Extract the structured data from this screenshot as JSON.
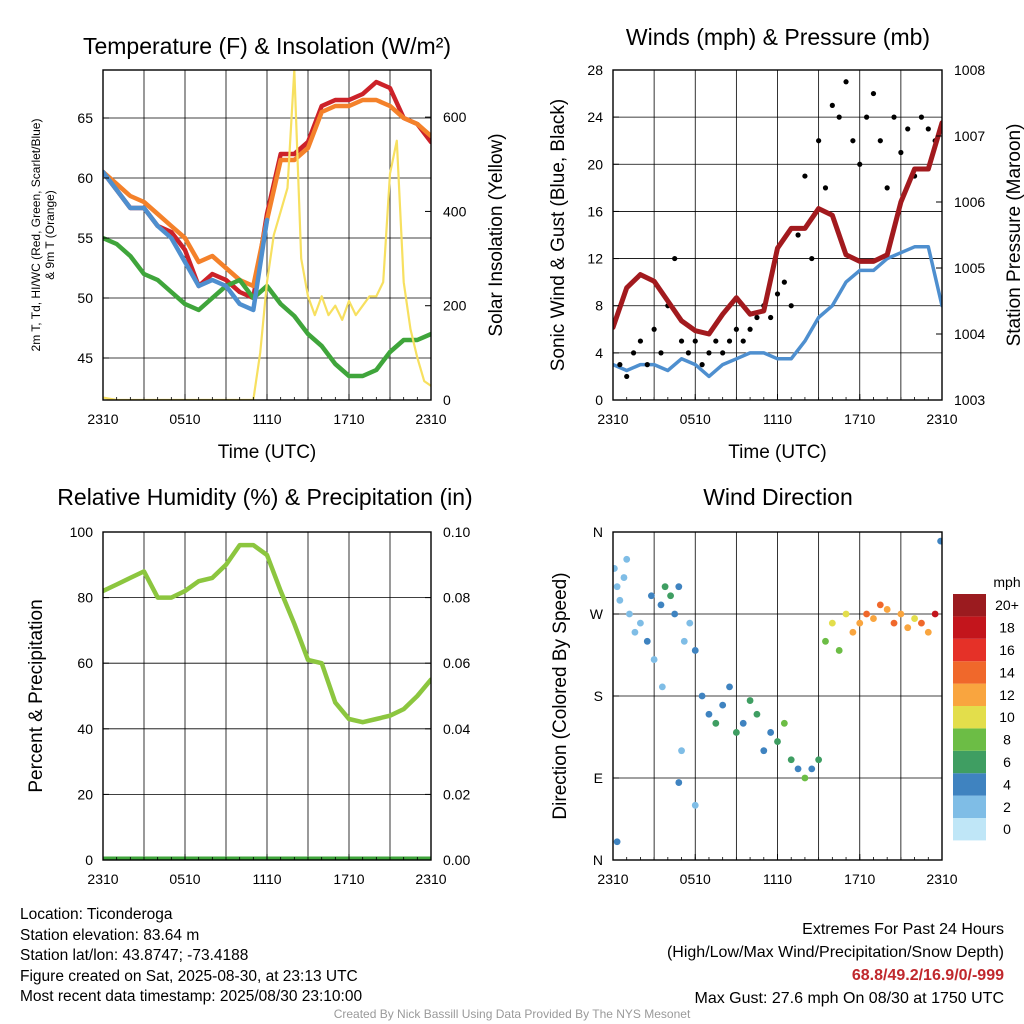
{
  "chart_data": [
    {
      "type": "line",
      "title": "Temperature (F) & Insolation (W/m²)",
      "xlabel": "Time (UTC)",
      "ylabel": "2m T, Td, HI/WC (Red, Green, Scarlet/Blue) & 9m T (Orange)",
      "y2label": "Solar Insolation (Yellow)",
      "x_ticks": [
        "2310",
        "0510",
        "1110",
        "1710",
        "2310"
      ],
      "y_ticks": [
        "45",
        "50",
        "55",
        "60",
        "65"
      ],
      "y2_ticks": [
        "0",
        "200",
        "400",
        "600"
      ],
      "ylim": [
        41.5,
        69
      ],
      "y2lim": [
        0,
        700
      ],
      "x_hours": [
        0,
        24
      ],
      "grid": true,
      "series": [
        {
          "name": "2m T",
          "axis": "left",
          "color": "#cc2229",
          "x": [
            0,
            1,
            2,
            3,
            4,
            5,
            6,
            7,
            8,
            9,
            10,
            11,
            12,
            13,
            14,
            15,
            16,
            17,
            18,
            19,
            20,
            21,
            22,
            23,
            24
          ],
          "values": [
            60.5,
            59,
            57.5,
            57.5,
            56,
            55.5,
            54,
            51,
            52,
            51.5,
            50.5,
            50,
            57,
            62,
            62,
            63,
            66,
            66.5,
            66.5,
            67,
            68,
            67.5,
            65,
            64.5,
            63
          ]
        },
        {
          "name": "9m T",
          "axis": "left",
          "color": "#f4812a",
          "x": [
            0,
            1,
            2,
            3,
            4,
            5,
            6,
            7,
            8,
            9,
            10,
            11,
            12,
            13,
            14,
            15,
            16,
            17,
            18,
            19,
            20,
            21,
            22,
            23,
            24
          ],
          "values": [
            60.5,
            59.5,
            58.5,
            58,
            57,
            56,
            55,
            53,
            53.5,
            52.5,
            51.5,
            51,
            56.5,
            61.5,
            61.5,
            62.5,
            65.5,
            66,
            66,
            66.5,
            66.5,
            66,
            65,
            64.5,
            63.5
          ]
        },
        {
          "name": "Td",
          "axis": "left",
          "color": "#3fa53b",
          "x": [
            0,
            1,
            2,
            3,
            4,
            5,
            6,
            7,
            8,
            9,
            10,
            11,
            12,
            13,
            14,
            15,
            16,
            17,
            18,
            19,
            20,
            21,
            22,
            23,
            24
          ],
          "values": [
            55,
            54.5,
            53.5,
            52,
            51.5,
            50.5,
            49.5,
            49,
            50,
            51,
            51.5,
            50,
            51,
            49.5,
            48.5,
            47,
            46,
            44.5,
            43.5,
            43.5,
            44,
            45.5,
            46.5,
            46.5,
            47
          ]
        },
        {
          "name": "HI/WC",
          "axis": "left",
          "color": "#4e8fcf",
          "x": [
            0,
            1,
            2,
            3,
            4,
            5,
            6,
            7,
            8,
            9,
            10,
            11,
            12
          ],
          "values": [
            60.5,
            59,
            57.5,
            57.5,
            56,
            55,
            53,
            51,
            51.5,
            51,
            49.5,
            49,
            56.5
          ]
        },
        {
          "name": "Solar Insolation",
          "axis": "right",
          "color": "#f7e060",
          "x": [
            0,
            1,
            2,
            3,
            4,
            5,
            6,
            7,
            8,
            9,
            10,
            11,
            11.5,
            12,
            12.5,
            13,
            13.5,
            14,
            14.5,
            15,
            15.5,
            16,
            16.5,
            17,
            17.5,
            18,
            18.5,
            19,
            19.5,
            20,
            20.5,
            21,
            21.5,
            22,
            22.5,
            23,
            23.5,
            24
          ],
          "values": [
            5,
            0,
            0,
            0,
            0,
            0,
            0,
            0,
            0,
            0,
            0,
            0,
            100,
            250,
            350,
            400,
            450,
            700,
            300,
            220,
            180,
            220,
            180,
            200,
            170,
            210,
            180,
            200,
            220,
            220,
            250,
            480,
            550,
            250,
            150,
            90,
            40,
            30
          ]
        }
      ]
    },
    {
      "type": "scatter",
      "title": "Winds (mph) & Pressure (mb)",
      "xlabel": "Time (UTC)",
      "ylabel": "Sonic Wind & Gust (Blue, Black)",
      "y2label": "Station Pressure (Maroon)",
      "x_ticks": [
        "2310",
        "0510",
        "1110",
        "1710",
        "2310"
      ],
      "y_ticks": [
        "0",
        "4",
        "8",
        "12",
        "16",
        "20",
        "24",
        "28"
      ],
      "y2_ticks": [
        "1003",
        "1004",
        "1005",
        "1006",
        "1007",
        "1008"
      ],
      "ylim": [
        0,
        28
      ],
      "y2lim": [
        1003,
        1008
      ],
      "x_hours": [
        0,
        24
      ],
      "grid": true,
      "series": [
        {
          "name": "Sonic Wind",
          "axis": "left",
          "color": "#4e8fcf",
          "style": "line",
          "x": [
            0,
            1,
            2,
            3,
            4,
            5,
            6,
            7,
            8,
            9,
            10,
            11,
            12,
            13,
            14,
            15,
            16,
            17,
            18,
            19,
            20,
            21,
            22,
            23,
            24
          ],
          "values": [
            3,
            2.5,
            3,
            3,
            2.5,
            3.5,
            3,
            2,
            3,
            3.5,
            4,
            4,
            3.5,
            3.5,
            5,
            7,
            8,
            10,
            11,
            11,
            12,
            12.5,
            13,
            13,
            8
          ]
        },
        {
          "name": "Gust",
          "axis": "left",
          "color": "#000000",
          "style": "points",
          "x": [
            0.5,
            1,
            1.5,
            2,
            2.5,
            3,
            3.5,
            4,
            4.5,
            5,
            5.5,
            6,
            6.5,
            7,
            7.5,
            8,
            8.5,
            9,
            9.5,
            10,
            10.5,
            11,
            11.5,
            12,
            12.5,
            13,
            13.5,
            14,
            14.5,
            15,
            15.5,
            16,
            16.5,
            17,
            17.5,
            18,
            18.5,
            19,
            19.5,
            20,
            20.5,
            21,
            21.5,
            22,
            22.5,
            23,
            23.5
          ],
          "values": [
            3,
            2,
            4,
            5,
            3,
            6,
            4,
            8,
            12,
            5,
            4,
            5,
            3,
            4,
            5,
            4,
            5,
            6,
            5,
            6,
            7,
            8,
            7,
            9,
            10,
            8,
            14,
            19,
            12,
            22,
            18,
            25,
            24,
            27,
            22,
            20,
            24,
            26,
            22,
            18,
            24,
            21,
            23,
            19,
            24,
            23,
            22
          ]
        },
        {
          "name": "Station Pressure",
          "axis": "right",
          "color": "#a21a1e",
          "style": "line",
          "x": [
            0,
            1,
            2,
            3,
            4,
            5,
            6,
            7,
            8,
            9,
            10,
            11,
            12,
            13,
            14,
            15,
            16,
            17,
            18,
            19,
            20,
            21,
            22,
            23,
            24
          ],
          "values": [
            1004.1,
            1004.7,
            1004.9,
            1004.8,
            1004.5,
            1004.2,
            1004.05,
            1004.0,
            1004.3,
            1004.55,
            1004.3,
            1004.35,
            1005.3,
            1005.6,
            1005.6,
            1005.9,
            1005.8,
            1005.2,
            1005.1,
            1005.1,
            1005.2,
            1006.0,
            1006.5,
            1006.5,
            1007.2
          ]
        }
      ]
    },
    {
      "type": "line",
      "title": "Relative Humidity (%) & Precipitation (in)",
      "xlabel": "",
      "ylabel": "Percent & Precipitation",
      "x_ticks": [
        "2310",
        "0510",
        "1110",
        "1710",
        "2310"
      ],
      "y_ticks": [
        "0",
        "20",
        "40",
        "60",
        "80",
        "100"
      ],
      "y2_ticks": [
        "0.00",
        "0.02",
        "0.04",
        "0.06",
        "0.08",
        "0.10"
      ],
      "ylim": [
        0,
        100
      ],
      "y2lim": [
        0,
        0.1
      ],
      "x_hours": [
        0,
        24
      ],
      "grid": true,
      "series": [
        {
          "name": "Relative Humidity",
          "axis": "left",
          "color": "#8cc63f",
          "x": [
            0,
            1,
            2,
            3,
            4,
            5,
            6,
            7,
            8,
            9,
            10,
            11,
            12,
            13,
            14,
            15,
            16,
            17,
            18,
            19,
            20,
            21,
            22,
            23,
            24
          ],
          "values": [
            82,
            84,
            86,
            88,
            80,
            80,
            82,
            85,
            86,
            90,
            96,
            96,
            93,
            82,
            72,
            61,
            60,
            48,
            43,
            42,
            43,
            44,
            46,
            50,
            55
          ]
        },
        {
          "name": "Precipitation",
          "axis": "right",
          "color": "#3fa53b",
          "x": [
            0,
            24
          ],
          "values": [
            0,
            0
          ]
        }
      ]
    },
    {
      "type": "scatter",
      "title": "Wind Direction",
      "xlabel": "",
      "ylabel": "Direction (Colored By Speed)",
      "x_ticks": [
        "2310",
        "0510",
        "1110",
        "1710",
        "2310"
      ],
      "y_ticks": [
        "N",
        "E",
        "S",
        "W",
        "N"
      ],
      "ylim": [
        0,
        360
      ],
      "x_hours": [
        0,
        24
      ],
      "grid": true,
      "colorbar": {
        "title": "mph",
        "labels": [
          "0",
          "2",
          "4",
          "6",
          "8",
          "10",
          "12",
          "14",
          "16",
          "18",
          "20+"
        ],
        "colors": [
          "#bfe6f7",
          "#7fbde6",
          "#3f83c0",
          "#3f9e62",
          "#6cbd45",
          "#e3de4b",
          "#f9a53f",
          "#f0682b",
          "#e53128",
          "#c3151c",
          "#9b1b1f"
        ]
      },
      "points": {
        "x": [
          0.1,
          0.3,
          0.5,
          0.8,
          1.2,
          1.6,
          2.0,
          2.5,
          3.0,
          3.5,
          3.8,
          4.2,
          4.5,
          4.8,
          5.2,
          5.6,
          6.0,
          6.5,
          7.0,
          7.5,
          8.0,
          8.5,
          9.0,
          9.5,
          10.0,
          10.5,
          11.0,
          11.5,
          12.0,
          12.5,
          13.0,
          13.5,
          14.0,
          14.5,
          15.0,
          15.5,
          16.0,
          16.5,
          17.0,
          17.5,
          18.0,
          18.5,
          19.0,
          19.5,
          20.0,
          20.5,
          21.0,
          21.5,
          22.0,
          22.5,
          23.0,
          23.5,
          23.9,
          0.3,
          4.8,
          5.0,
          6.0,
          1.0,
          2.8,
          3.6
        ],
        "values": [
          320,
          300,
          285,
          310,
          270,
          250,
          260,
          240,
          220,
          280,
          300,
          290,
          270,
          300,
          240,
          260,
          230,
          180,
          160,
          150,
          170,
          190,
          140,
          150,
          175,
          160,
          120,
          140,
          130,
          150,
          110,
          100,
          90,
          100,
          110,
          240,
          260,
          230,
          270,
          250,
          260,
          270,
          265,
          280,
          275,
          260,
          270,
          255,
          265,
          260,
          250,
          270,
          350,
          20,
          85,
          120,
          60,
          330,
          290,
          190
        ],
        "speed": [
          1,
          2,
          1,
          2,
          2,
          1,
          2,
          3,
          2,
          4,
          6,
          5,
          3,
          4,
          2,
          2,
          3,
          4,
          3,
          5,
          4,
          3,
          5,
          4,
          6,
          5,
          4,
          3,
          6,
          7,
          5,
          4,
          7,
          3,
          5,
          8,
          9,
          8,
          10,
          12,
          11,
          13,
          12,
          14,
          11,
          13,
          12,
          11,
          10,
          13,
          12,
          17,
          4,
          4,
          3,
          2,
          1,
          2,
          3,
          2
        ]
      }
    }
  ],
  "info": {
    "location": "Location: Ticonderoga",
    "elevation": "Station elevation: 83.64 m",
    "latlon": "Station lat/lon: 43.8747; -73.4188",
    "created": "Figure created on Sat, 2025-08-30, at 23:13 UTC",
    "recent": "Most recent data timestamp: 2025/08/30 23:10:00"
  },
  "extremes": {
    "title": "Extremes For Past 24 Hours",
    "subtitle": "(High/Low/Max Wind/Precipitation/Snow Depth)",
    "values": "68.8/49.2/16.9/0/-999",
    "gust": "Max Gust: 27.6 mph On 08/30 at 1750 UTC"
  },
  "credit": "Created By Nick Bassill Using Data Provided By The NYS Mesonet"
}
